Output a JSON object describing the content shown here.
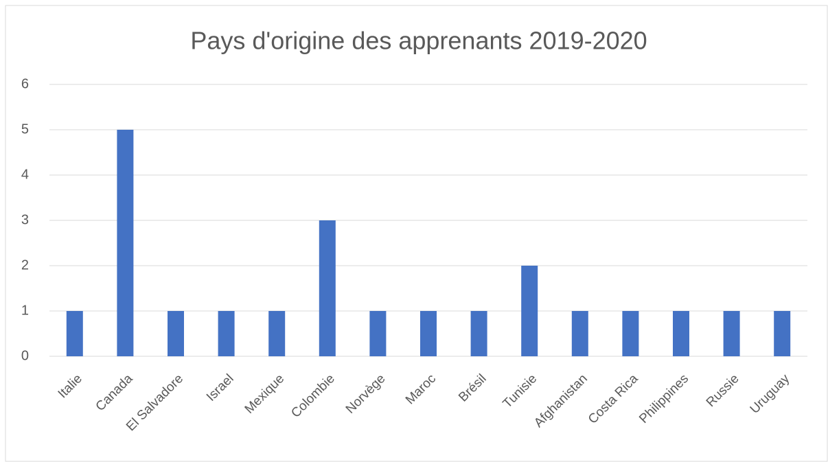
{
  "chart_data": {
    "type": "bar",
    "title": "Pays d'origine des apprenants 2019-2020",
    "categories": [
      "Italie",
      "Canada",
      "El Salvadore",
      "Israel",
      "Mexique",
      "Colombie",
      "Norvège",
      "Maroc",
      "Brésil",
      "Tunisie",
      "Afghanistan",
      "Costa Rica",
      "Philippines",
      "Russie",
      "Uruguay"
    ],
    "values": [
      1,
      5,
      1,
      1,
      1,
      3,
      1,
      1,
      1,
      2,
      1,
      1,
      1,
      1,
      1
    ],
    "color": "#4472c4",
    "ylim": [
      0,
      6
    ],
    "yticks": [
      0,
      1,
      2,
      3,
      4,
      5,
      6
    ],
    "grid": true
  }
}
